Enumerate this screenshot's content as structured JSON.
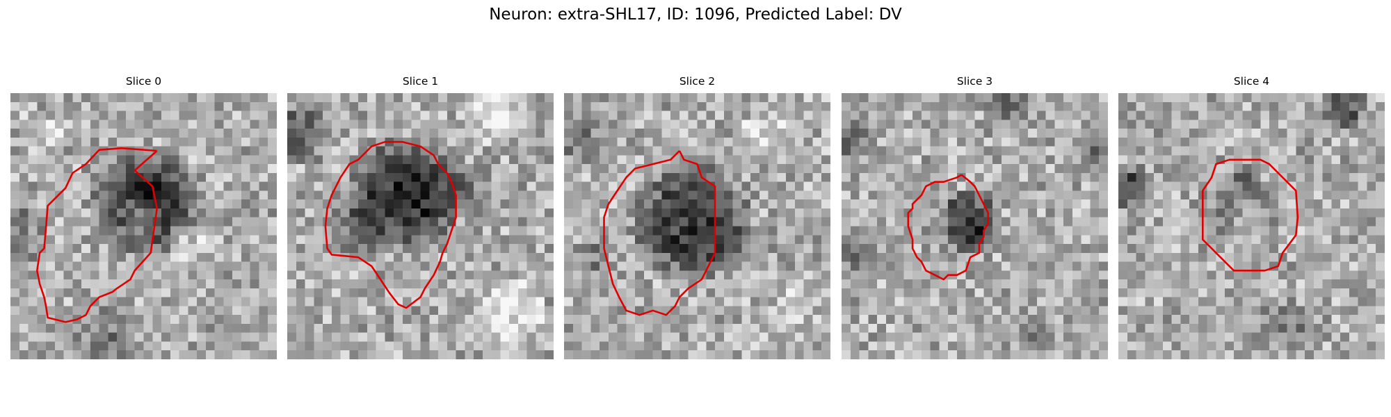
{
  "figure": {
    "title": "Neuron: extra-SHL17, ID: 1096, Predicted Label: DV"
  },
  "outline_color": "#e00000",
  "panels": [
    {
      "title": "Slice 0",
      "seed": 11,
      "blobs": [
        [
          15,
          12,
          6.8,
          -0.55
        ],
        [
          14,
          14,
          3,
          0.25
        ],
        [
          3,
          4,
          3,
          0.18
        ],
        [
          0,
          16,
          5,
          -0.2
        ],
        [
          10,
          27,
          5,
          -0.18
        ],
        [
          19,
          16,
          3,
          0.2
        ]
      ],
      "outline": [
        [
          16.5,
          6.5
        ],
        [
          14,
          8.7
        ],
        [
          16,
          10.5
        ],
        [
          16.5,
          13
        ],
        [
          16,
          16.5
        ],
        [
          15.8,
          18
        ],
        [
          14,
          20
        ],
        [
          13.5,
          21
        ],
        [
          12,
          22
        ],
        [
          11.5,
          22.4
        ],
        [
          10,
          23
        ],
        [
          9,
          24
        ],
        [
          8.5,
          25
        ],
        [
          7.5,
          25.5
        ],
        [
          6.2,
          25.8
        ],
        [
          4.2,
          25.3
        ],
        [
          4,
          24
        ],
        [
          3.8,
          23
        ],
        [
          3.3,
          21.5
        ],
        [
          3,
          20
        ],
        [
          3.3,
          18
        ],
        [
          3.8,
          17.5
        ],
        [
          4,
          15.2
        ],
        [
          4.2,
          12.7
        ],
        [
          6.2,
          10.7
        ],
        [
          7,
          9
        ],
        [
          8.5,
          8
        ],
        [
          10,
          6.4
        ],
        [
          12.5,
          6.2
        ],
        [
          16.5,
          6.5
        ]
      ]
    },
    {
      "title": "Slice 1",
      "seed": 23,
      "blobs": [
        [
          13,
          11,
          7.2,
          -0.55
        ],
        [
          20,
          10,
          3,
          -0.2
        ],
        [
          1,
          4,
          4,
          -0.3
        ],
        [
          7,
          15,
          4,
          -0.2
        ],
        [
          25,
          24,
          4,
          0.25
        ],
        [
          23,
          2,
          4,
          0.25
        ]
      ],
      "outline": [
        [
          18,
          9
        ],
        [
          18.5,
          10
        ],
        [
          19,
          11.5
        ],
        [
          19,
          14
        ],
        [
          18.5,
          15.5
        ],
        [
          18,
          17
        ],
        [
          17.5,
          18
        ],
        [
          17.2,
          19
        ],
        [
          16.5,
          20.5
        ],
        [
          15.5,
          22
        ],
        [
          15,
          23
        ],
        [
          13.4,
          24.2
        ],
        [
          12.5,
          23.8
        ],
        [
          11.5,
          22.5
        ],
        [
          10.5,
          21
        ],
        [
          9.5,
          19.5
        ],
        [
          8,
          18.5
        ],
        [
          5,
          18.2
        ],
        [
          4.5,
          17.5
        ],
        [
          4.3,
          15
        ],
        [
          4.5,
          13
        ],
        [
          5,
          11.5
        ],
        [
          6,
          9.5
        ],
        [
          7,
          8
        ],
        [
          8,
          7.5
        ],
        [
          9.5,
          6
        ],
        [
          11,
          5.5
        ],
        [
          13,
          5.5
        ],
        [
          15,
          6
        ],
        [
          16.5,
          7
        ],
        [
          17,
          8
        ],
        [
          18,
          9
        ]
      ]
    },
    {
      "title": "Slice 2",
      "seed": 37,
      "blobs": [
        [
          14,
          14,
          7.5,
          -0.5
        ],
        [
          1,
          5,
          3,
          -0.25
        ],
        [
          3,
          18,
          3,
          -0.15
        ],
        [
          22,
          4,
          3,
          0.2
        ],
        [
          25,
          24,
          3,
          0.15
        ]
      ],
      "outline": [
        [
          13,
          6.5
        ],
        [
          13.5,
          7.5
        ],
        [
          15,
          8
        ],
        [
          15.5,
          9.5
        ],
        [
          17,
          10.5
        ],
        [
          17,
          12
        ],
        [
          17,
          14
        ],
        [
          17,
          16
        ],
        [
          17,
          18
        ],
        [
          16.5,
          19
        ],
        [
          16,
          20
        ],
        [
          15.5,
          21
        ],
        [
          14,
          22
        ],
        [
          13,
          23
        ],
        [
          12.5,
          24
        ],
        [
          11.5,
          25
        ],
        [
          10,
          24.5
        ],
        [
          8.5,
          25
        ],
        [
          7,
          24.5
        ],
        [
          6.2,
          23
        ],
        [
          5.5,
          21.5
        ],
        [
          5,
          19.5
        ],
        [
          4.5,
          17.5
        ],
        [
          4.5,
          14
        ],
        [
          5,
          12.5
        ],
        [
          6,
          11
        ],
        [
          7,
          9.5
        ],
        [
          8,
          8.5
        ],
        [
          10,
          8
        ],
        [
          12,
          7.5
        ],
        [
          13,
          6.5
        ]
      ]
    },
    {
      "title": "Slice 3",
      "seed": 53,
      "blobs": [
        [
          14,
          14,
          4,
          -0.5
        ],
        [
          0,
          5,
          3,
          -0.3
        ],
        [
          1,
          18,
          3,
          -0.25
        ],
        [
          18,
          1,
          3,
          -0.25
        ],
        [
          28,
          6,
          3,
          -0.2
        ],
        [
          20,
          27,
          4,
          -0.1
        ]
      ],
      "outline": [
        [
          13.5,
          9.2
        ],
        [
          14.5,
          10
        ],
        [
          15,
          10.5
        ],
        [
          15.5,
          11.5
        ],
        [
          16,
          12.5
        ],
        [
          16.5,
          13.5
        ],
        [
          16.5,
          14.7
        ],
        [
          16,
          15.5
        ],
        [
          16,
          16.2
        ],
        [
          15.5,
          17
        ],
        [
          15.5,
          18
        ],
        [
          14.5,
          18.5
        ],
        [
          14,
          20
        ],
        [
          13,
          20.5
        ],
        [
          12,
          20.5
        ],
        [
          11.5,
          21
        ],
        [
          10.5,
          20.5
        ],
        [
          9.5,
          20
        ],
        [
          9,
          19
        ],
        [
          8.5,
          18.5
        ],
        [
          8,
          17.5
        ],
        [
          8,
          16.5
        ],
        [
          7.5,
          15
        ],
        [
          7.5,
          13.5
        ],
        [
          8,
          13
        ],
        [
          8,
          12.5
        ],
        [
          9,
          11.5
        ],
        [
          9.5,
          10.5
        ],
        [
          10.5,
          10
        ],
        [
          11.5,
          10
        ],
        [
          13,
          9.5
        ],
        [
          13.5,
          9.2
        ]
      ]
    },
    {
      "title": "Slice 4",
      "seed": 71,
      "blobs": [
        [
          14,
          13,
          4.5,
          -0.2
        ],
        [
          14,
          14,
          2.5,
          0.25
        ],
        [
          1,
          10,
          3,
          -0.4
        ],
        [
          25,
          1,
          3,
          -0.4
        ],
        [
          18,
          26,
          4,
          -0.15
        ],
        [
          14,
          9,
          2,
          -0.2
        ]
      ],
      "outline": [
        [
          18,
          9
        ],
        [
          20,
          11
        ],
        [
          20.2,
          14
        ],
        [
          20,
          16
        ],
        [
          18.5,
          18
        ],
        [
          18,
          19.5
        ],
        [
          16.5,
          20
        ],
        [
          15,
          20
        ],
        [
          13,
          20
        ],
        [
          12,
          19
        ],
        [
          11,
          18
        ],
        [
          10.5,
          17.5
        ],
        [
          9.5,
          16.5
        ],
        [
          9.5,
          15
        ],
        [
          9.5,
          13
        ],
        [
          9.5,
          11
        ],
        [
          10.5,
          9.5
        ],
        [
          11,
          8
        ],
        [
          12.5,
          7.5
        ],
        [
          14,
          7.5
        ],
        [
          16,
          7.5
        ],
        [
          17,
          8
        ],
        [
          18,
          9
        ]
      ]
    }
  ]
}
